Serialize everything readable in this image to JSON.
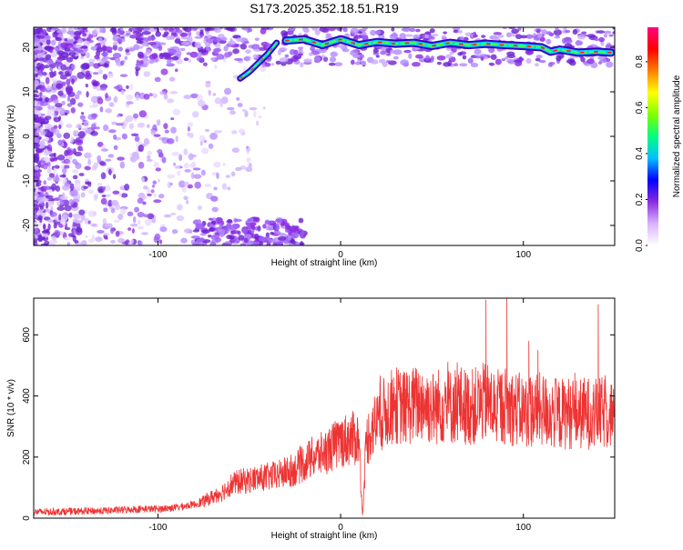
{
  "title": "S173.2025.352.18.51.R19",
  "chart_data": [
    {
      "type": "heatmap",
      "xlabel": "Height of straight line (km)",
      "ylabel": "Frequency (Hz)",
      "xlim": [
        -168,
        150
      ],
      "ylim": [
        -24.5,
        24.5
      ],
      "xticks": [
        -100,
        0,
        100
      ],
      "yticks": [
        -20,
        -10,
        0,
        10,
        20
      ],
      "colorbar": {
        "label": "Normalized spectral amplitude",
        "range": [
          0,
          0.95
        ],
        "ticks": [
          "0.0",
          "0.2",
          "0.4",
          "0.6",
          "0.8"
        ],
        "tick_values": [
          0,
          0.2,
          0.4,
          0.6,
          0.8
        ],
        "colors": [
          "#ffffff",
          "#d9b3ff",
          "#8a2be2",
          "#0000ff",
          "#00c0ff",
          "#00ff80",
          "#80ff00",
          "#ffff00",
          "#ff8000",
          "#ff0000",
          "#ff0080"
        ]
      },
      "signal_ridge": {
        "x": [
          -30,
          -20,
          -10,
          0,
          10,
          20,
          30,
          40,
          50,
          60,
          70,
          80,
          90,
          100,
          110,
          115,
          120,
          130,
          140,
          148
        ],
        "y": [
          21.5,
          21.8,
          20.5,
          21.8,
          20.5,
          21.2,
          20.8,
          21.0,
          20.3,
          21.0,
          20.5,
          20.8,
          20.5,
          20.3,
          20.0,
          19.0,
          19.5,
          18.8,
          19.0,
          18.8
        ]
      },
      "secondary_ridge": {
        "x": [
          -55,
          -50,
          -45,
          -40,
          -35
        ],
        "y": [
          13,
          14.5,
          16.5,
          18.5,
          21
        ]
      }
    },
    {
      "type": "line",
      "xlabel": "Height of straight line (km)",
      "ylabel": "SNR (10 * v/v)",
      "xlim": [
        -168,
        150
      ],
      "ylim": [
        0,
        720
      ],
      "xticks": [
        -100,
        0,
        100
      ],
      "yticks": [
        0,
        200,
        400,
        600
      ],
      "color": "#ee3333",
      "x": [
        -168,
        -150,
        -130,
        -110,
        -100,
        -90,
        -80,
        -75,
        -70,
        -65,
        -60,
        -55,
        -50,
        -45,
        -40,
        -35,
        -30,
        -25,
        -20,
        -15,
        -10,
        -5,
        0,
        5,
        10,
        12,
        14,
        16,
        20,
        25,
        30,
        35,
        40,
        45,
        50,
        55,
        60,
        65,
        70,
        75,
        80,
        85,
        90,
        95,
        100,
        105,
        110,
        115,
        120,
        125,
        130,
        135,
        140,
        145,
        150
      ],
      "y": [
        20,
        22,
        24,
        30,
        30,
        35,
        45,
        55,
        70,
        85,
        110,
        120,
        125,
        130,
        135,
        140,
        150,
        160,
        180,
        200,
        210,
        230,
        250,
        260,
        260,
        0,
        250,
        280,
        320,
        350,
        370,
        360,
        370,
        380,
        360,
        370,
        365,
        375,
        360,
        370,
        380,
        360,
        370,
        360,
        350,
        350,
        355,
        345,
        340,
        345,
        340,
        345,
        340,
        345,
        340
      ],
      "spikes": [
        {
          "x": 79.5,
          "y": 715
        },
        {
          "x": 91,
          "y": 720
        },
        {
          "x": 141,
          "y": 700
        },
        {
          "x": 108,
          "y": 550
        },
        {
          "x": 103,
          "y": 580
        }
      ]
    }
  ]
}
